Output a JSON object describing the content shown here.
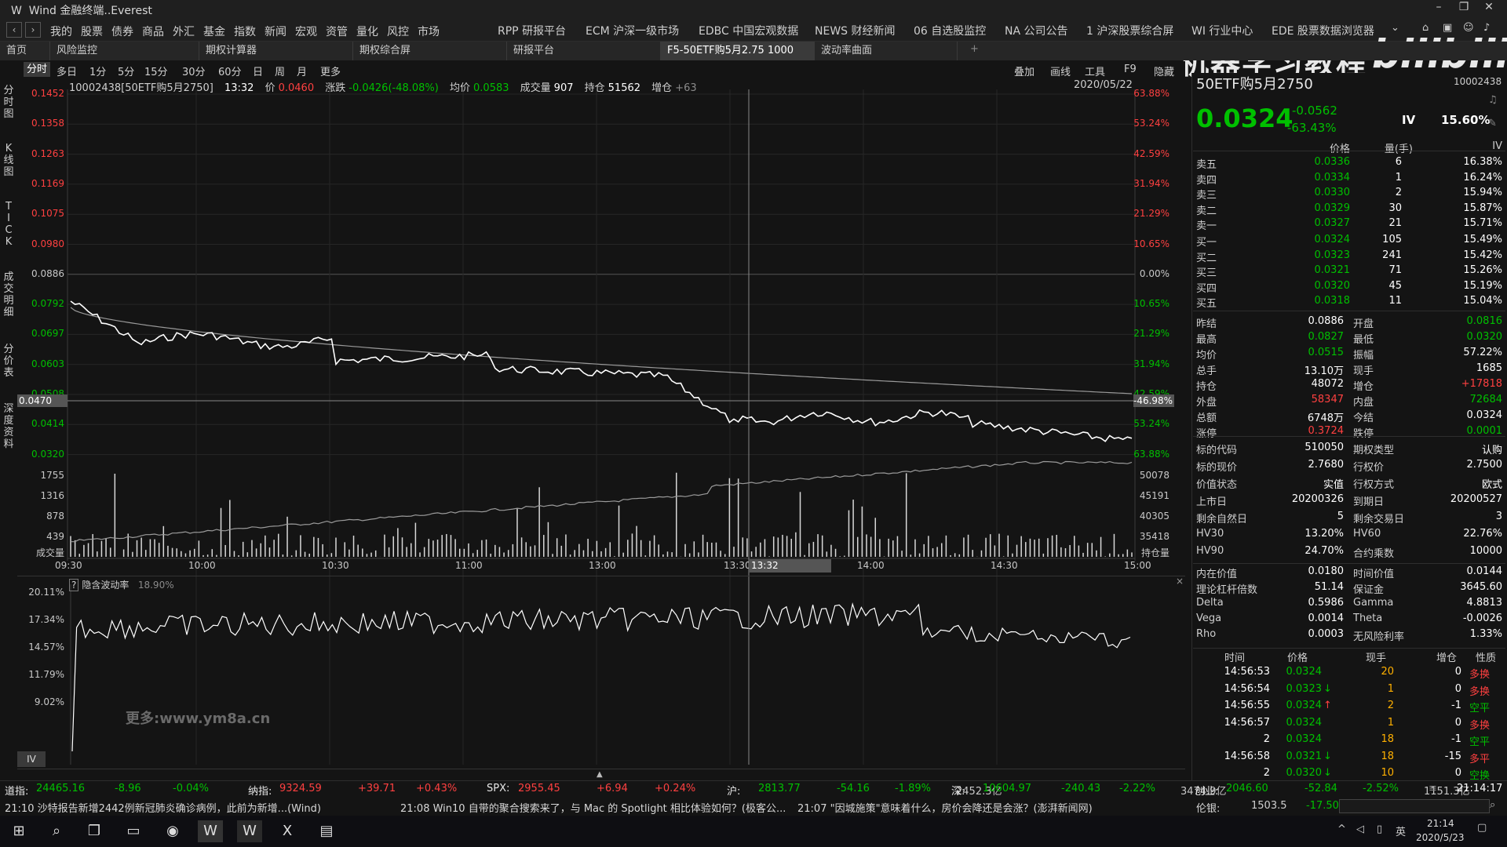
{
  "window": {
    "title": "Wind 金融终端..Everest",
    "logo": "W"
  },
  "watermark": {
    "text": "机器学习教程",
    "brand": "bilibili"
  },
  "menu": [
    "我的",
    "股票",
    "债券",
    "商品",
    "外汇",
    "基金",
    "指数",
    "新闻",
    "宏观",
    "资管",
    "量化",
    "风控",
    "市场"
  ],
  "shortcuts": [
    "RPP 研报平台",
    "ECM 沪深一级市场",
    "EDBC 中国宏观数据",
    "NEWS 财经新闻",
    "06 自选股监控",
    "NA 公司公告",
    "1 沪深股票综合屏",
    "WI 行业中心",
    "EDE 股票数据浏览器"
  ],
  "tabs": [
    {
      "label": "首页"
    },
    {
      "label": "风险监控"
    },
    {
      "label": "期权计算器"
    },
    {
      "label": "期权综合屏"
    },
    {
      "label": "研报平台"
    },
    {
      "label": "F5-50ETF购5月2.75 1000"
    },
    {
      "label": "波动率曲面"
    }
  ],
  "periods": [
    "分时",
    "多日",
    "1分",
    "5分",
    "15分",
    "30分",
    "60分",
    "日",
    "周",
    "月",
    "更多"
  ],
  "toolbar": [
    "叠加",
    "画线",
    "工具",
    "F9",
    "隐藏"
  ],
  "side_tabs": [
    "分时图",
    "K线图",
    "TICK",
    "成交明细",
    "分价表",
    "深度资料"
  ],
  "info": {
    "code": "10002438[50ETF购5月2750]",
    "time": "13:32",
    "price_label": "价",
    "price": "0.0460",
    "chg_label": "涨跌",
    "chg": "-0.0426(-48.08%)",
    "avg_label": "均价",
    "avg": "0.0583",
    "vol_label": "成交量",
    "vol": "907",
    "oi_label": "持仓",
    "oi": "51562",
    "oi_chg_label": "增仓",
    "oi_chg": "+63",
    "date": "2020/05/22"
  },
  "price_axis": {
    "left": [
      "0.1452",
      "0.1358",
      "0.1263",
      "0.1169",
      "0.1075",
      "0.0980",
      "0.0886",
      "0.0792",
      "0.0697",
      "0.0603",
      "0.0508",
      "0.0414",
      "0.0320"
    ],
    "right": [
      "63.88%",
      "53.24%",
      "42.59%",
      "31.94%",
      "21.29%",
      "10.65%",
      "0.00%",
      "10.65%",
      "21.29%",
      "31.94%",
      "42.59%",
      "53.24%",
      "63.88%"
    ],
    "cursor_price": "0.0470",
    "cursor_pct": "-46.98%"
  },
  "volume_axis": {
    "left": [
      "1755",
      "1316",
      "878",
      "439",
      "成交量"
    ],
    "right": [
      "50078",
      "45191",
      "40305",
      "35418",
      "持仓量"
    ]
  },
  "time_axis": [
    "09:30",
    "10:00",
    "10:30",
    "11:00",
    "13:00",
    "13:30",
    "14:00",
    "14:30",
    "15:00"
  ],
  "cursor_time": "13:32",
  "iv_panel": {
    "title": "隐含波动率",
    "value": "18.90%",
    "axis": [
      "20.11%",
      "17.34%",
      "14.57%",
      "11.79%",
      "9.02%"
    ],
    "tab": "IV",
    "watermark": "更多:www.ym8a.cn"
  },
  "quote": {
    "name": "50ETF购5月2750",
    "code": "10002438",
    "price": "0.0324",
    "chg": "-0.0562",
    "chg_pct": "-63.43%",
    "iv_label": "IV",
    "iv": "15.60%",
    "headers": [
      "价格",
      "量(手)",
      "IV"
    ],
    "asks": [
      {
        "label": "卖五",
        "price": "0.0336",
        "vol": "6",
        "iv": "16.38%"
      },
      {
        "label": "卖四",
        "price": "0.0334",
        "vol": "1",
        "iv": "16.24%"
      },
      {
        "label": "卖三",
        "price": "0.0330",
        "vol": "2",
        "iv": "15.94%"
      },
      {
        "label": "卖二",
        "price": "0.0329",
        "vol": "30",
        "iv": "15.87%"
      },
      {
        "label": "卖一",
        "price": "0.0327",
        "vol": "21",
        "iv": "15.71%"
      }
    ],
    "bids": [
      {
        "label": "买一",
        "price": "0.0324",
        "vol": "105",
        "iv": "15.49%"
      },
      {
        "label": "买二",
        "price": "0.0323",
        "vol": "241",
        "iv": "15.42%"
      },
      {
        "label": "买三",
        "price": "0.0321",
        "vol": "71",
        "iv": "15.26%"
      },
      {
        "label": "买四",
        "price": "0.0320",
        "vol": "45",
        "iv": "15.19%"
      },
      {
        "label": "买五",
        "price": "0.0318",
        "vol": "11",
        "iv": "15.04%"
      }
    ],
    "stats": [
      [
        "昨结",
        "0.0886",
        "开盘",
        "0.0816"
      ],
      [
        "最高",
        "0.0827",
        "最低",
        "0.0320"
      ],
      [
        "均价",
        "0.0515",
        "振幅",
        "57.22%"
      ],
      [
        "总手",
        "13.10万",
        "现手",
        "1685"
      ],
      [
        "持仓",
        "48072",
        "增仓",
        "+17818"
      ],
      [
        "外盘",
        "58347",
        "内盘",
        "72684"
      ],
      [
        "总额",
        "6748万",
        "今结",
        "0.0324"
      ],
      [
        "涨停",
        "0.3724",
        "跌停",
        "0.0001"
      ]
    ],
    "contract": [
      [
        "标的代码",
        "510050",
        "期权类型",
        "认购"
      ],
      [
        "标的现价",
        "2.7680",
        "行权价",
        "2.7500"
      ],
      [
        "价值状态",
        "实值",
        "行权方式",
        "欧式"
      ],
      [
        "上市日",
        "20200326",
        "到期日",
        "20200527"
      ],
      [
        "剩余自然日",
        "5",
        "剩余交易日",
        "3"
      ],
      [
        "HV30",
        "13.20%",
        "HV60",
        "22.76%"
      ],
      [
        "HV90",
        "24.70%",
        "合约乘数",
        "10000"
      ]
    ],
    "greeks": [
      [
        "内在价值",
        "0.0180",
        "时间价值",
        "0.0144"
      ],
      [
        "理论杠杆倍数",
        "51.14",
        "保证金",
        "3645.60"
      ],
      [
        "Delta",
        "0.5986",
        "Gamma",
        "4.8813"
      ],
      [
        "Vega",
        "0.0014",
        "Theta",
        "-0.0026"
      ],
      [
        "Rho",
        "0.0003",
        "无风险利率",
        "1.33%"
      ]
    ],
    "ticks_header": [
      "时间",
      "价格",
      "现手",
      "增仓",
      "性质"
    ],
    "ticks": [
      [
        "14:56:53",
        "0.0324",
        "",
        "20",
        "0",
        "多换"
      ],
      [
        "14:56:54",
        "0.0323",
        "↓",
        "1",
        "0",
        "多换"
      ],
      [
        "14:56:55",
        "0.0324",
        "↑",
        "2",
        "-1",
        "空平"
      ],
      [
        "14:56:57",
        "0.0324",
        "",
        "1",
        "0",
        "多换"
      ],
      [
        "2",
        "0.0324",
        "",
        "18",
        "-1",
        "空平"
      ],
      [
        "14:56:58",
        "0.0321",
        "↓",
        "18",
        "-15",
        "多平"
      ],
      [
        "2",
        "0.0320",
        "↓",
        "10",
        "0",
        "空换"
      ]
    ]
  },
  "index_bar": [
    {
      "name": "道指:",
      "val": "24465.16",
      "chg": "-8.96",
      "pct": "-0.04%",
      "amt": ""
    },
    {
      "name": "纳指:",
      "val": "9324.59",
      "chg": "+39.71",
      "pct": "+0.43%",
      "amt": ""
    },
    {
      "name": "SPX:",
      "val": "2955.45",
      "chg": "+6.94",
      "pct": "+0.24%",
      "amt": ""
    },
    {
      "name": "沪:",
      "val": "2813.77",
      "chg": "-54.16",
      "pct": "-1.89%",
      "amt": "2452.3亿"
    },
    {
      "name": "深:",
      "val": "10604.97",
      "chg": "-240.43",
      "pct": "-2.22%",
      "amt": "3474.9亿"
    },
    {
      "name": "创业:",
      "val": "2046.60",
      "chg": "-52.84",
      "pct": "-2.52%",
      "amt": "1151.3亿"
    }
  ],
  "clock": "21:14:17",
  "news": [
    "21:10  沙特报告新增2442例新冠肺炎确诊病例，此前为新增...(Wind)",
    "21:08  Win10 自带的聚合搜索来了，与 Mac 的 Spotlight 相比体验如何？(极客公...",
    "21:07  \"因城施策\"意味着什么，房价会降还是会涨？(澎湃新闻网)"
  ],
  "gold": {
    "label": "伦银:",
    "val": "1503.5",
    "chg": "-17.50"
  },
  "taskbar": {
    "time": "21:14",
    "date": "2020/5/23",
    "ime": "英"
  },
  "colors": {
    "up": "#ff4040",
    "down": "#00c000",
    "line": "#ffffff",
    "avg": "#b0b0b0",
    "bg": "#141414"
  }
}
